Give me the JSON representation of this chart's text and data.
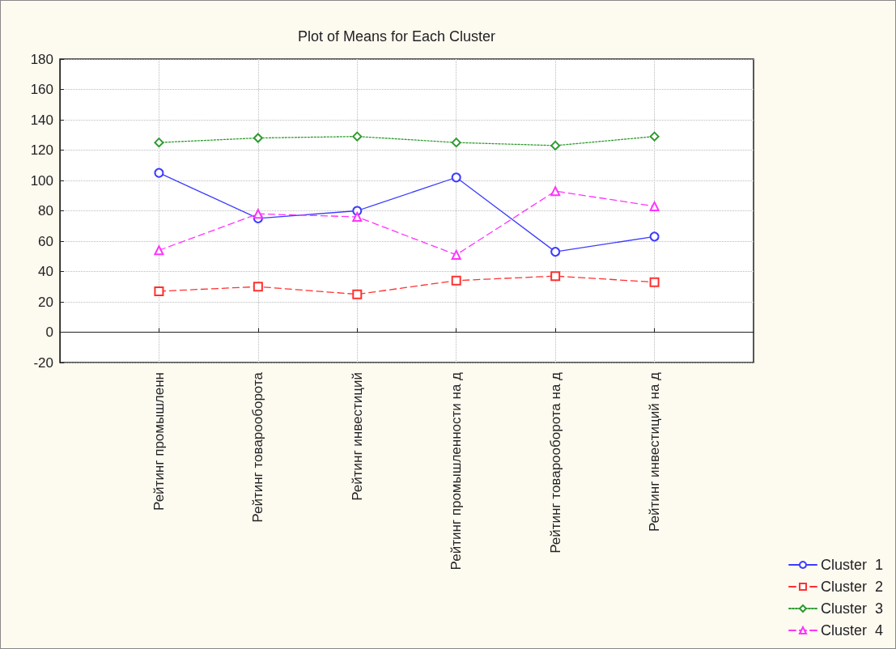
{
  "chart_data": {
    "type": "line",
    "title": "Plot of Means for Each Cluster",
    "categories": [
      "Рейтинг промышленн",
      "Рейтинг товарооборота",
      "Рейтинг инвестиций",
      "Рейтинг промышленности на д",
      "Рейтинг товарооборота на д",
      "Рейтинг инвестиций на д"
    ],
    "series": [
      {
        "name": "Cluster  1",
        "color": "#3c3cff",
        "marker": "circle",
        "line_style": "solid",
        "values": [
          105,
          75,
          80,
          102,
          53,
          63
        ]
      },
      {
        "name": "Cluster  2",
        "color": "#ff3030",
        "marker": "square",
        "line_style": "dashed",
        "values": [
          27,
          30,
          25,
          34,
          37,
          33
        ]
      },
      {
        "name": "Cluster  3",
        "color": "#2e9a2e",
        "marker": "diamond",
        "line_style": "dotted",
        "values": [
          125,
          128,
          129,
          125,
          123,
          129
        ]
      },
      {
        "name": "Cluster  4",
        "color": "#ff33ff",
        "marker": "triangle",
        "line_style": "dashed",
        "values": [
          54,
          78,
          76,
          51,
          93,
          83
        ]
      }
    ],
    "ylim": [
      -20,
      180
    ],
    "yticks": [
      -20,
      0,
      20,
      40,
      60,
      80,
      100,
      120,
      140,
      160,
      180
    ],
    "grid": true,
    "legend": "bottom right"
  }
}
